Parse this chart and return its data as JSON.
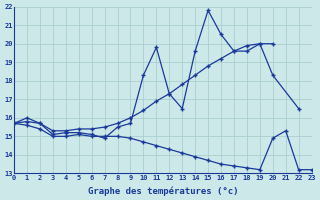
{
  "title": "",
  "xlabel": "Graphe des températures (°c)",
  "ylabel": "",
  "xlim": [
    0,
    23
  ],
  "ylim": [
    13,
    22
  ],
  "xticks": [
    0,
    1,
    2,
    3,
    4,
    5,
    6,
    7,
    8,
    9,
    10,
    11,
    12,
    13,
    14,
    15,
    16,
    17,
    18,
    19,
    20,
    21,
    22,
    23
  ],
  "yticks": [
    13,
    14,
    15,
    16,
    17,
    18,
    19,
    20,
    21,
    22
  ],
  "bg_color": "#cce8e8",
  "line_color": "#1a3a9a",
  "grid_color": "#aacece",
  "series": [
    {
      "x": [
        0,
        1,
        2,
        3,
        4,
        5,
        6,
        7,
        8,
        9,
        10,
        11,
        12,
        13,
        14,
        15,
        16,
        17,
        18,
        19,
        20,
        22
      ],
      "y": [
        15.7,
        16.0,
        15.7,
        15.1,
        15.2,
        15.2,
        15.1,
        14.9,
        15.5,
        15.7,
        18.3,
        19.8,
        17.3,
        16.5,
        19.6,
        21.8,
        20.5,
        19.6,
        19.6,
        20.0,
        18.3,
        16.5
      ]
    },
    {
      "x": [
        0,
        1,
        2,
        3,
        4,
        5,
        6,
        7,
        8,
        9,
        10,
        11,
        12,
        13,
        14,
        15,
        16,
        17,
        18,
        19,
        20
      ],
      "y": [
        15.7,
        15.8,
        15.7,
        15.3,
        15.3,
        15.4,
        15.4,
        15.5,
        15.7,
        16.0,
        16.4,
        16.9,
        17.3,
        17.8,
        18.3,
        18.8,
        19.2,
        19.6,
        19.9,
        20.0,
        20.0
      ]
    },
    {
      "x": [
        0,
        1,
        2,
        3,
        4,
        5,
        6,
        7,
        8,
        9,
        10,
        11,
        12,
        13,
        14,
        15,
        16,
        17,
        18,
        19,
        20,
        21,
        22,
        23
      ],
      "y": [
        15.7,
        15.6,
        15.4,
        15.0,
        15.0,
        15.1,
        15.0,
        15.0,
        15.0,
        14.9,
        14.7,
        14.5,
        14.3,
        14.1,
        13.9,
        13.7,
        13.5,
        13.4,
        13.3,
        13.2,
        14.9,
        15.3,
        13.2,
        13.2
      ]
    }
  ]
}
